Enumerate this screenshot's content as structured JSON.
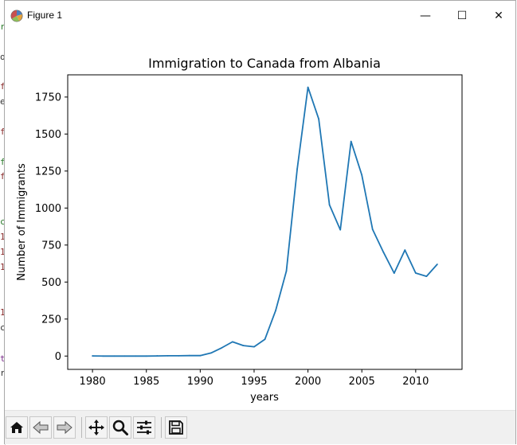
{
  "window": {
    "title": "Figure 1",
    "controls": {
      "minimize": "—",
      "maximize": "☐",
      "close": "✕"
    }
  },
  "toolbar": {
    "buttons": [
      {
        "name": "home-icon"
      },
      {
        "name": "back-arrow-icon"
      },
      {
        "name": "forward-arrow-icon"
      },
      {
        "name": "pan-icon"
      },
      {
        "name": "zoom-icon"
      },
      {
        "name": "configure-subplots-icon"
      },
      {
        "name": "save-icon"
      }
    ]
  },
  "colors": {
    "line": "#1f77b4",
    "axes": "#000000",
    "toolbar_bg": "#f0f0f0"
  },
  "chart_data": {
    "type": "line",
    "title": "Immigration to Canada from Albania",
    "xlabel": "years",
    "ylabel": "Number of Immigrants",
    "xlim": [
      1977.7,
      2014.3
    ],
    "ylim": [
      -90,
      1900
    ],
    "xticks": [
      1980,
      1985,
      1990,
      1995,
      2000,
      2005,
      2010
    ],
    "yticks": [
      0,
      250,
      500,
      750,
      1000,
      1250,
      1500,
      1750
    ],
    "grid": false,
    "legend": "none",
    "x": [
      1980,
      1981,
      1982,
      1983,
      1984,
      1985,
      1986,
      1987,
      1988,
      1989,
      1990,
      1991,
      1992,
      1993,
      1994,
      1995,
      1996,
      1997,
      1998,
      1999,
      2000,
      2001,
      2002,
      2003,
      2004,
      2005,
      2006,
      2007,
      2008,
      2009,
      2010,
      2011,
      2012
    ],
    "values": [
      1,
      0,
      0,
      0,
      0,
      0,
      1,
      2,
      2,
      3,
      3,
      21,
      56,
      96,
      71,
      63,
      113,
      307,
      574,
      1264,
      1816,
      1602,
      1021,
      853,
      1450,
      1223,
      856,
      702,
      560,
      716,
      561,
      539,
      620
    ]
  }
}
